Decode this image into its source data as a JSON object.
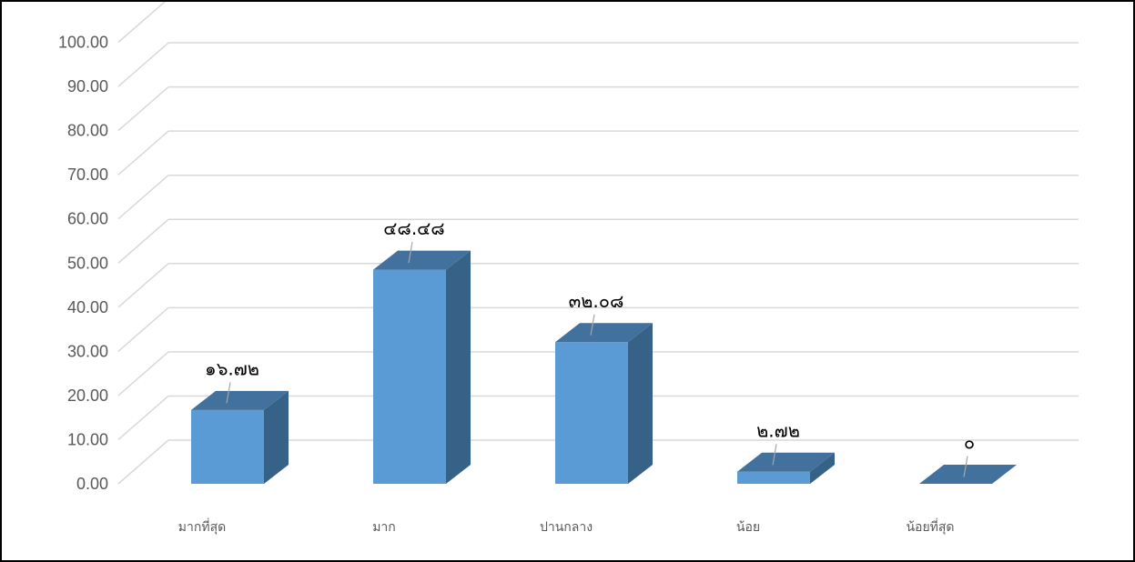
{
  "chart_data": {
    "type": "bar",
    "style": "3d-column",
    "categories": [
      "มากที่สุด",
      "มาก",
      "ปานกลาง",
      "น้อย",
      "น้อยที่สุด"
    ],
    "values": [
      16.72,
      48.48,
      32.08,
      2.72,
      0
    ],
    "data_labels": [
      "๑๖.๗๒",
      "๔๘.๔๘",
      "๓๒.๐๘",
      "๒.๗๒",
      "๐"
    ],
    "y_ticks": [
      "0.00",
      "10.00",
      "20.00",
      "30.00",
      "40.00",
      "50.00",
      "60.00",
      "70.00",
      "80.00",
      "90.00",
      "100.00"
    ],
    "ylim": [
      0,
      110
    ],
    "grid": true,
    "legend": "none",
    "title": "",
    "xlabel": "",
    "ylabel": "",
    "colors": {
      "bar_front": "#5B9BD5",
      "bar_top": "#41719C",
      "bar_side": "#376287",
      "grid": "#D9D9D9",
      "leader": "#A6A6A6"
    }
  }
}
